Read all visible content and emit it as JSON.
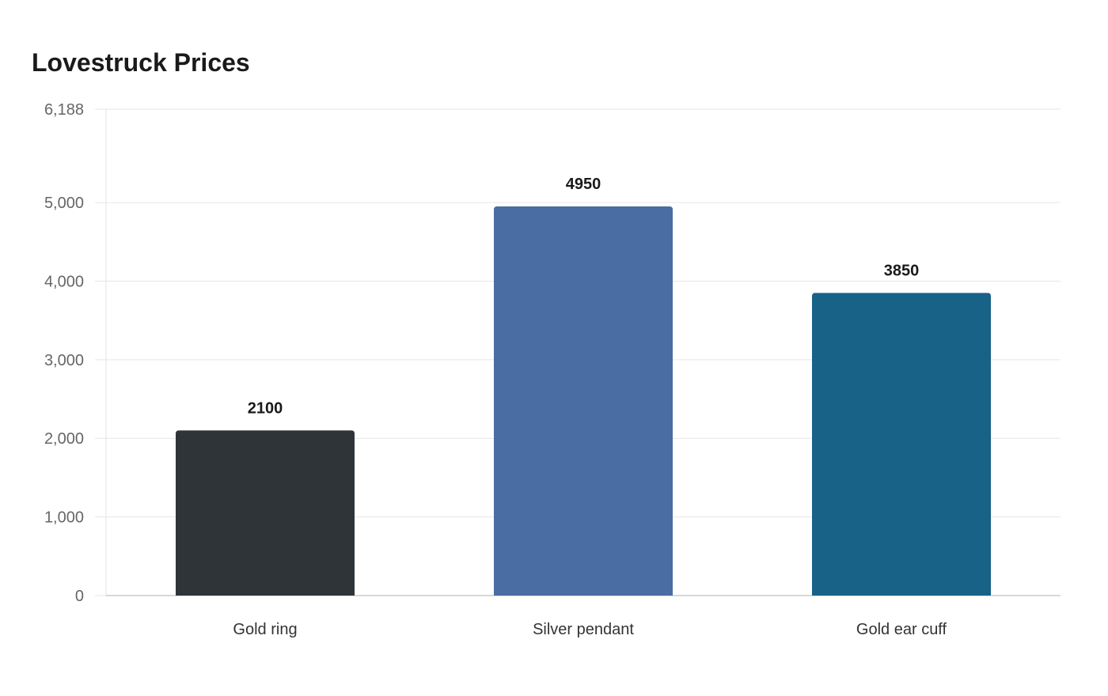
{
  "chart_data": {
    "type": "bar",
    "title": "Lovestruck Prices",
    "categories": [
      "Gold ring",
      "Silver pendant",
      "Gold ear cuff"
    ],
    "values": [
      2100,
      4950,
      3850
    ],
    "colors": [
      "#2e3437",
      "#4a6da3",
      "#186187"
    ],
    "ylim": [
      0,
      6188
    ],
    "yticks": [
      0,
      1000,
      2000,
      3000,
      4000,
      5000,
      6188
    ],
    "ytick_labels": [
      "0",
      "1,000",
      "2,000",
      "3,000",
      "4,000",
      "5,000",
      "6,188"
    ],
    "xlabel": "",
    "ylabel": "",
    "grid": true,
    "legend": "none",
    "data_labels": true
  }
}
